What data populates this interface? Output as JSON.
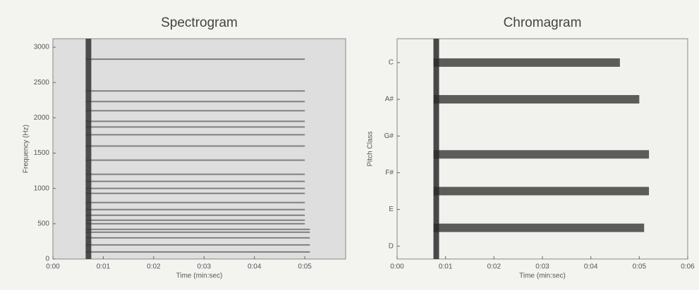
{
  "chart_data": [
    {
      "type": "spectrogram",
      "title": "Spectrogram",
      "xlabel": "Time (min:sec)",
      "ylabel": "Frequency (Hz)",
      "xlim": [
        0,
        5.81
      ],
      "ylim": [
        0,
        3120
      ],
      "xticks": [
        {
          "value": 0,
          "label": "0:00"
        },
        {
          "value": 1,
          "label": "0:01"
        },
        {
          "value": 2,
          "label": "0:02"
        },
        {
          "value": 3,
          "label": "0:03"
        },
        {
          "value": 4,
          "label": "0:04"
        },
        {
          "value": 5,
          "label": "0:05"
        }
      ],
      "yticks": [
        0,
        500,
        1000,
        1500,
        2000,
        2500,
        3000
      ],
      "onset": 0.65,
      "color": "#333333",
      "partials": {
        "y": [
          100,
          200,
          300,
          380,
          420,
          500,
          550,
          620,
          700,
          800,
          930,
          1000,
          1100,
          1200,
          1400,
          1600,
          1760,
          1870,
          1950,
          2100,
          2230,
          2380,
          2830
        ],
        "end": [
          5.1,
          5.1,
          5.1,
          5.1,
          5.1,
          5.0,
          5.0,
          5.0,
          5.0,
          5.0,
          5.0,
          5.0,
          5.0,
          5.0,
          5.0,
          5.0,
          5.0,
          5.0,
          5.0,
          5.0,
          5.0,
          5.0,
          5.0
        ]
      }
    },
    {
      "type": "chromagram",
      "title": "Chromagram",
      "xlabel": "Time (min:sec)",
      "ylabel": "Pitch Class",
      "xlim": [
        0,
        6
      ],
      "ylim": [
        -0.7,
        11.3
      ],
      "xticks": [
        {
          "value": 0,
          "label": "0:00"
        },
        {
          "value": 1,
          "label": "0:01"
        },
        {
          "value": 2,
          "label": "0:02"
        },
        {
          "value": 3,
          "label": "0:03"
        },
        {
          "value": 4,
          "label": "0:04"
        },
        {
          "value": 5,
          "label": "0:05"
        },
        {
          "value": 6,
          "label": "0:06"
        }
      ],
      "yticks": [
        {
          "value": 0,
          "label": "D"
        },
        {
          "value": 2,
          "label": "E"
        },
        {
          "value": 4,
          "label": "F#"
        },
        {
          "value": 6,
          "label": "G#"
        },
        {
          "value": 8,
          "label": "A#"
        },
        {
          "value": 10,
          "label": "C"
        }
      ],
      "onset": 0.75,
      "color": "#2a2a2a",
      "partials": {
        "y": [
          1,
          3,
          5,
          8,
          10
        ],
        "end": [
          5.1,
          5.2,
          5.2,
          5.0,
          4.6
        ]
      }
    }
  ]
}
